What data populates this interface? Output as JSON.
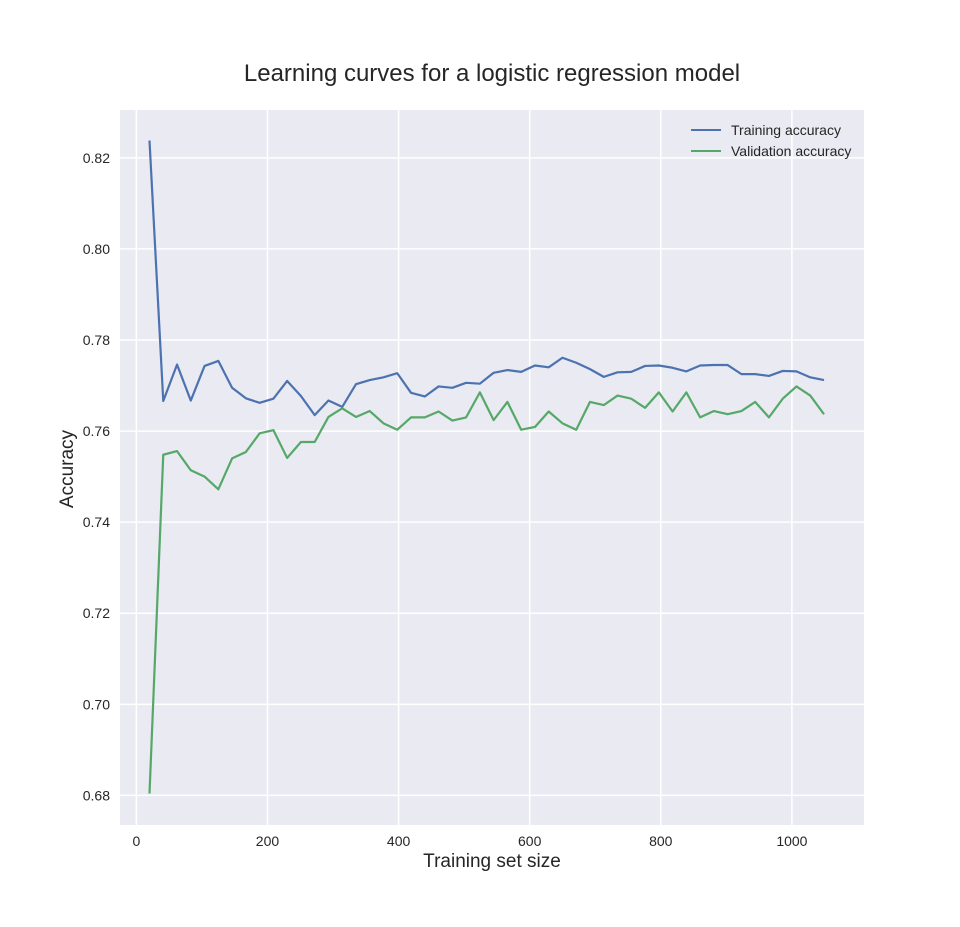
{
  "chart_data": {
    "type": "line",
    "title": "Learning curves for a logistic regression model",
    "xlabel": "Training set size",
    "ylabel": "Accuracy",
    "xlim": [
      -25,
      1110
    ],
    "ylim": [
      0.6735,
      0.8305
    ],
    "xticks": [
      0,
      200,
      400,
      600,
      800,
      1000
    ],
    "xtick_labels": [
      "0",
      "200",
      "400",
      "600",
      "800",
      "1000"
    ],
    "yticks": [
      0.68,
      0.7,
      0.72,
      0.74,
      0.76,
      0.78,
      0.8,
      0.82
    ],
    "ytick_labels": [
      "0.68",
      "0.70",
      "0.72",
      "0.74",
      "0.76",
      "0.78",
      "0.80",
      "0.82"
    ],
    "grid": true,
    "legend_position": "top-right",
    "background": "#eaeaf2",
    "x": [
      20,
      41,
      62,
      83,
      104,
      125,
      146,
      167,
      188,
      209,
      230,
      251,
      272,
      293,
      314,
      335,
      356,
      377,
      398,
      419,
      440,
      461,
      482,
      503,
      524,
      545,
      566,
      587,
      608,
      629,
      650,
      671,
      692,
      713,
      734,
      755,
      776,
      797,
      818,
      839,
      860,
      881,
      902,
      923,
      944,
      965,
      986,
      1007,
      1028,
      1049
    ],
    "series": [
      {
        "name": "Training accuracy",
        "color": "#4c72b0",
        "values": [
          0.8238,
          0.7666,
          0.7746,
          0.7667,
          0.7743,
          0.7754,
          0.7695,
          0.7672,
          0.7662,
          0.7671,
          0.771,
          0.7677,
          0.7635,
          0.7667,
          0.7653,
          0.7703,
          0.7712,
          0.7718,
          0.7727,
          0.7684,
          0.7676,
          0.7698,
          0.7695,
          0.7706,
          0.7704,
          0.7728,
          0.7734,
          0.773,
          0.7744,
          0.774,
          0.7761,
          0.775,
          0.7736,
          0.7719,
          0.7729,
          0.773,
          0.7743,
          0.7744,
          0.7739,
          0.7731,
          0.7744,
          0.7745,
          0.7745,
          0.7725,
          0.7725,
          0.7721,
          0.7732,
          0.7731,
          0.7718,
          0.7712
        ]
      },
      {
        "name": "Validation accuracy",
        "color": "#55a868",
        "values": [
          0.6804,
          0.7548,
          0.7556,
          0.7514,
          0.75,
          0.7472,
          0.754,
          0.7554,
          0.7595,
          0.7602,
          0.7541,
          0.7576,
          0.7576,
          0.7631,
          0.765,
          0.7631,
          0.7644,
          0.7617,
          0.7603,
          0.763,
          0.763,
          0.7643,
          0.7623,
          0.763,
          0.7685,
          0.7624,
          0.7664,
          0.7603,
          0.7609,
          0.7643,
          0.7617,
          0.7603,
          0.7664,
          0.7657,
          0.7678,
          0.7671,
          0.7651,
          0.7685,
          0.7643,
          0.7685,
          0.763,
          0.7644,
          0.7637,
          0.7644,
          0.7664,
          0.763,
          0.7671,
          0.7698,
          0.7678,
          0.7637
        ]
      }
    ]
  }
}
